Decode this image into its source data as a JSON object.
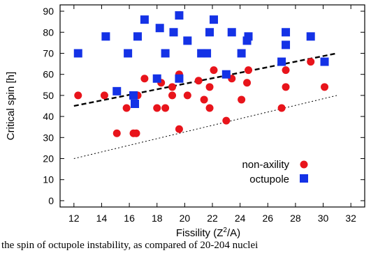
{
  "chart_data": {
    "type": "scatter",
    "xlabel": "Fissility (Z",
    "xlabel_sup": "2",
    "xlabel_tail": "/A)",
    "ylabel": "Critical spin [h]",
    "xlim": [
      11,
      33
    ],
    "ylim": [
      -3,
      93
    ],
    "x_ticks": [
      12,
      14,
      16,
      18,
      20,
      22,
      24,
      26,
      28,
      30,
      32
    ],
    "y_ticks": [
      0,
      10,
      20,
      30,
      40,
      50,
      60,
      70,
      80,
      90
    ],
    "grid": false,
    "legend_position": "bottom-right",
    "series": [
      {
        "name": "non-axility",
        "marker": "circle",
        "color": "#e8141b",
        "points": [
          [
            12.3,
            50
          ],
          [
            14.2,
            50
          ],
          [
            15.1,
            32
          ],
          [
            15.8,
            44
          ],
          [
            16.3,
            32
          ],
          [
            16.5,
            32
          ],
          [
            16.6,
            50
          ],
          [
            17.1,
            58
          ],
          [
            18.0,
            44
          ],
          [
            18.3,
            56
          ],
          [
            18.6,
            44
          ],
          [
            19.1,
            54
          ],
          [
            19.1,
            50
          ],
          [
            19.6,
            60
          ],
          [
            19.6,
            34
          ],
          [
            20.2,
            50
          ],
          [
            21.0,
            57
          ],
          [
            21.4,
            48
          ],
          [
            21.8,
            44
          ],
          [
            21.8,
            54
          ],
          [
            22.1,
            62
          ],
          [
            23.0,
            38
          ],
          [
            23.4,
            58
          ],
          [
            24.1,
            48
          ],
          [
            24.5,
            56
          ],
          [
            24.6,
            62
          ],
          [
            27.0,
            44
          ],
          [
            27.3,
            54
          ],
          [
            27.3,
            62
          ],
          [
            29.1,
            66
          ],
          [
            30.1,
            54
          ]
        ]
      },
      {
        "name": "octupole",
        "marker": "square",
        "color": "#1432e6",
        "points": [
          [
            12.3,
            70
          ],
          [
            14.3,
            78
          ],
          [
            15.1,
            52
          ],
          [
            15.9,
            70
          ],
          [
            16.3,
            50
          ],
          [
            16.4,
            46
          ],
          [
            16.6,
            78
          ],
          [
            17.1,
            86
          ],
          [
            18.0,
            58
          ],
          [
            18.2,
            82
          ],
          [
            18.6,
            70
          ],
          [
            19.2,
            80
          ],
          [
            19.6,
            88
          ],
          [
            19.6,
            58
          ],
          [
            20.2,
            76
          ],
          [
            21.2,
            70
          ],
          [
            21.6,
            70
          ],
          [
            21.8,
            80
          ],
          [
            22.1,
            86
          ],
          [
            23.0,
            60
          ],
          [
            23.4,
            80
          ],
          [
            24.1,
            70
          ],
          [
            24.5,
            76
          ],
          [
            24.6,
            78
          ],
          [
            27.0,
            66
          ],
          [
            27.3,
            74
          ],
          [
            27.3,
            80
          ],
          [
            29.1,
            78
          ],
          [
            30.1,
            66
          ]
        ]
      }
    ],
    "lines": [
      {
        "style": "dashed-thick",
        "x": [
          12,
          31
        ],
        "y": [
          45,
          70
        ]
      },
      {
        "style": "dotted-thin",
        "x": [
          12,
          31
        ],
        "y": [
          20,
          50
        ]
      }
    ]
  },
  "caption": "the spin of octupole instability, as compared of 20-204 nuclei"
}
